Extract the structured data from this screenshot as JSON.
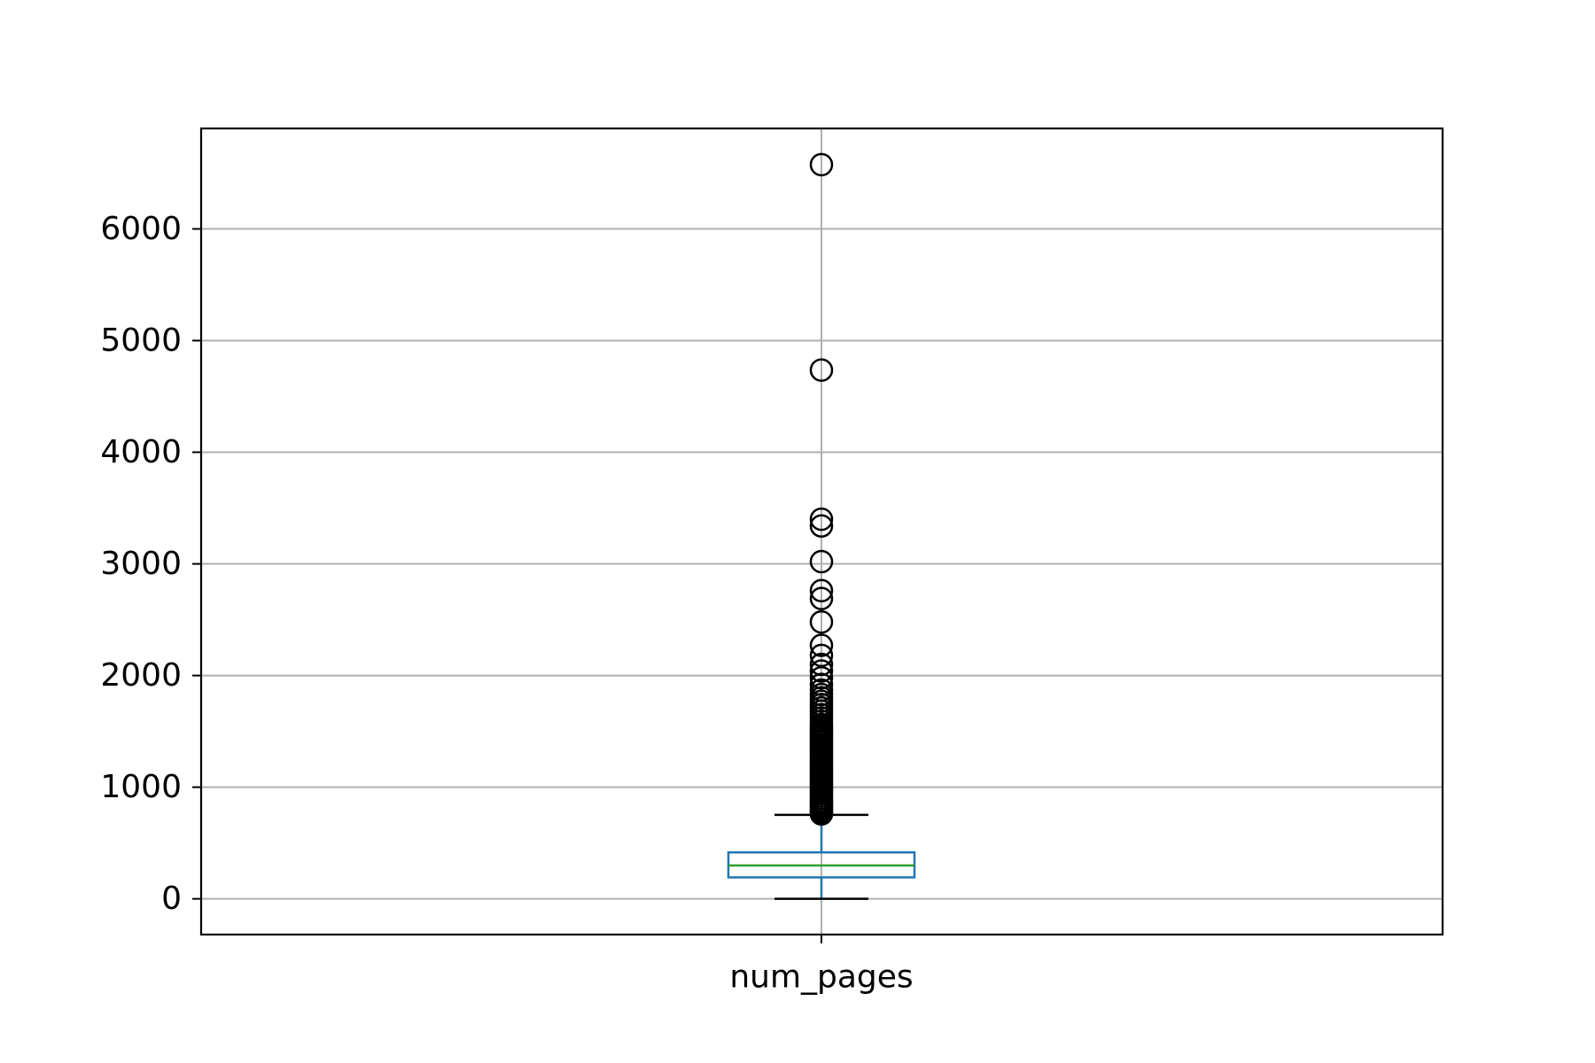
{
  "chart_data": {
    "type": "box",
    "title": "",
    "xlabel": "",
    "ylabel": "",
    "categories": [
      "num_pages"
    ],
    "yticks": [
      0,
      1000,
      2000,
      3000,
      4000,
      5000,
      6000
    ],
    "ylim": [
      -320,
      6900
    ],
    "grid": true,
    "box": {
      "whisker_low": 0,
      "q1": 192,
      "median": 299,
      "q3": 416,
      "whisker_high": 752
    },
    "outliers": [
      760,
      775,
      790,
      805,
      820,
      835,
      850,
      865,
      880,
      900,
      920,
      940,
      960,
      980,
      1000,
      1020,
      1040,
      1060,
      1080,
      1100,
      1120,
      1140,
      1160,
      1180,
      1200,
      1220,
      1240,
      1260,
      1280,
      1300,
      1320,
      1340,
      1360,
      1380,
      1400,
      1420,
      1440,
      1460,
      1480,
      1500,
      1520,
      1540,
      1560,
      1590,
      1620,
      1650,
      1680,
      1710,
      1740,
      1770,
      1800,
      1830,
      1870,
      1920,
      1980,
      2040,
      2100,
      2180,
      2270,
      2480,
      2690,
      2760,
      3020,
      3340,
      3400,
      4736,
      6576
    ],
    "colors": {
      "box": "#1f77b4",
      "median": "#2ca02c",
      "whisker": "#000000",
      "outlier": "#000000",
      "grid": "#b0b0b0"
    }
  }
}
